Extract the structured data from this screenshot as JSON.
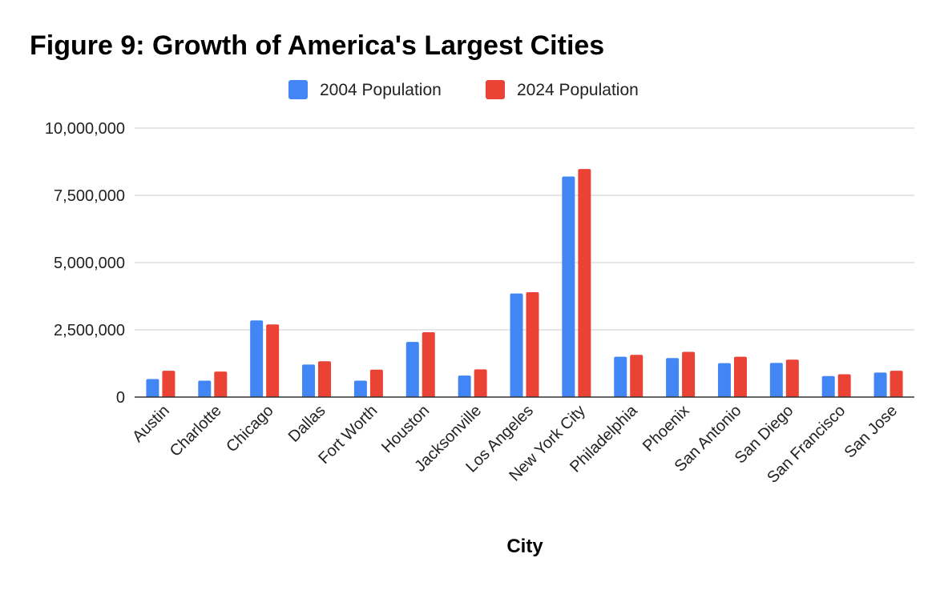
{
  "chart_data": {
    "type": "bar",
    "title": "Figure 9: Growth of America's Largest Cities",
    "xlabel": "City",
    "ylabel": "",
    "ylim": [
      0,
      10000000
    ],
    "y_ticks": [
      0,
      2500000,
      5000000,
      7500000,
      10000000
    ],
    "y_tick_labels": [
      "0",
      "2,500,000",
      "5,000,000",
      "7,500,000",
      "10,000,000"
    ],
    "grid": true,
    "legend_position": "top-center",
    "categories": [
      "Austin",
      "Charlotte",
      "Chicago",
      "Dallas",
      "Fort Worth",
      "Houston",
      "Jacksonville",
      "Los Angeles",
      "New York City",
      "Philadelphia",
      "Phoenix",
      "San Antonio",
      "San Diego",
      "San Francisco",
      "San Jose"
    ],
    "series": [
      {
        "name": "2004 Population",
        "color": "#4285f4",
        "values": [
          670000,
          610000,
          2850000,
          1210000,
          610000,
          2050000,
          800000,
          3850000,
          8200000,
          1500000,
          1450000,
          1260000,
          1270000,
          780000,
          910000
        ]
      },
      {
        "name": "2024 Population",
        "color": "#ea4335",
        "values": [
          980000,
          950000,
          2700000,
          1330000,
          1020000,
          2410000,
          1030000,
          3900000,
          8480000,
          1570000,
          1680000,
          1500000,
          1390000,
          850000,
          980000
        ]
      }
    ]
  }
}
